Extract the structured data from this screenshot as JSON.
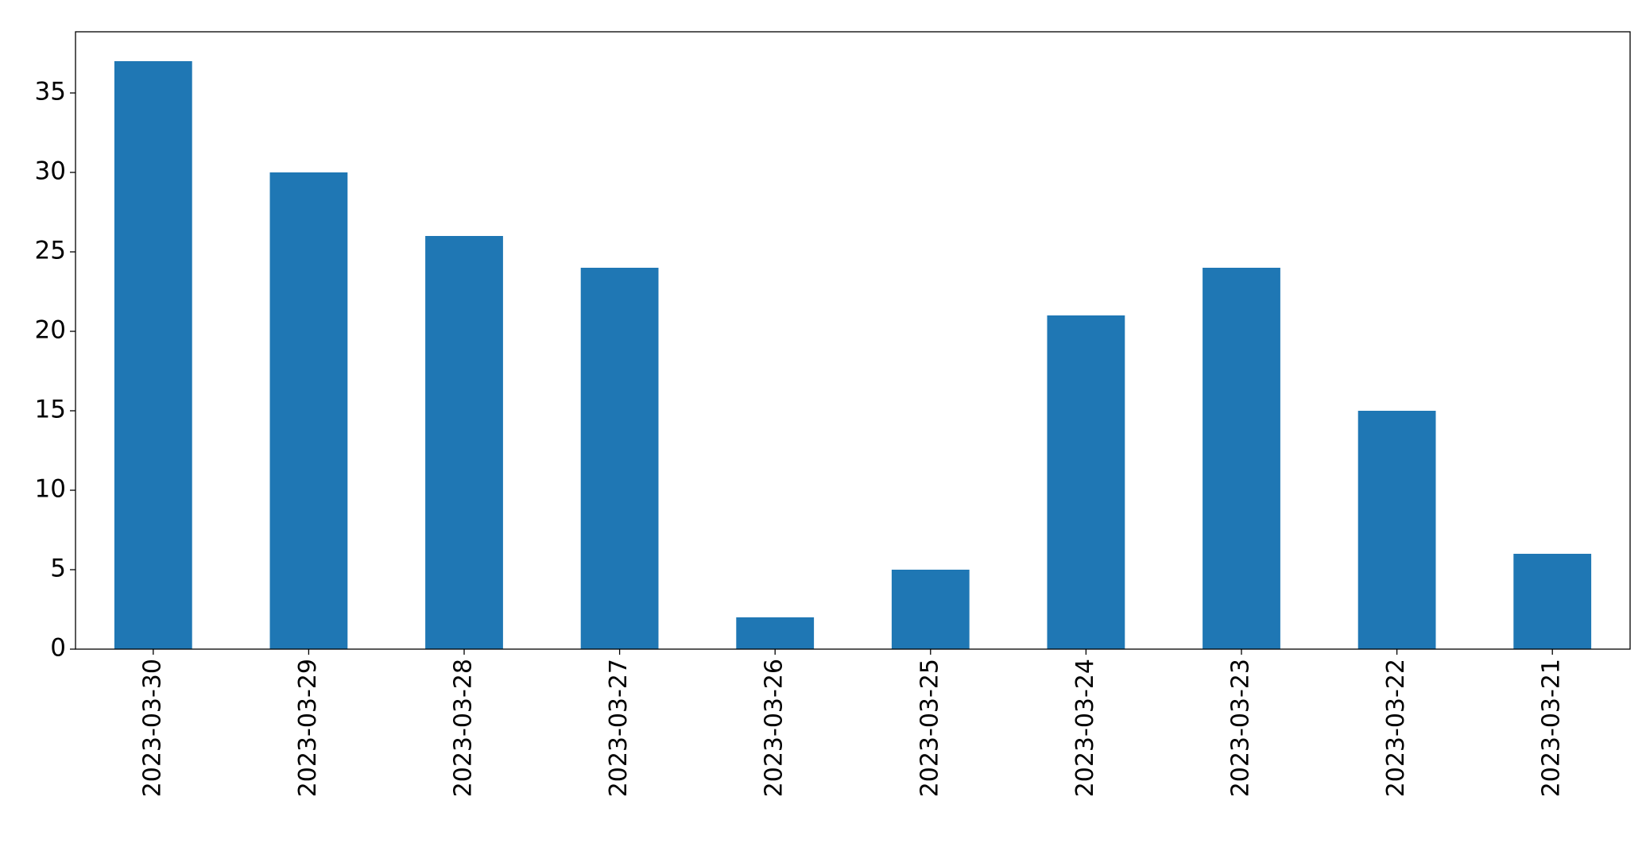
{
  "chart_data": {
    "type": "bar",
    "categories": [
      "2023-03-30",
      "2023-03-29",
      "2023-03-28",
      "2023-03-27",
      "2023-03-26",
      "2023-03-25",
      "2023-03-24",
      "2023-03-23",
      "2023-03-22",
      "2023-03-21"
    ],
    "values": [
      37,
      30,
      26,
      24,
      2,
      5,
      21,
      24,
      15,
      6
    ],
    "color": "#1f77b4",
    "ylim": [
      0,
      38.85
    ],
    "yticks": [
      0,
      5,
      10,
      15,
      20,
      25,
      30,
      35
    ],
    "grid": false
  }
}
